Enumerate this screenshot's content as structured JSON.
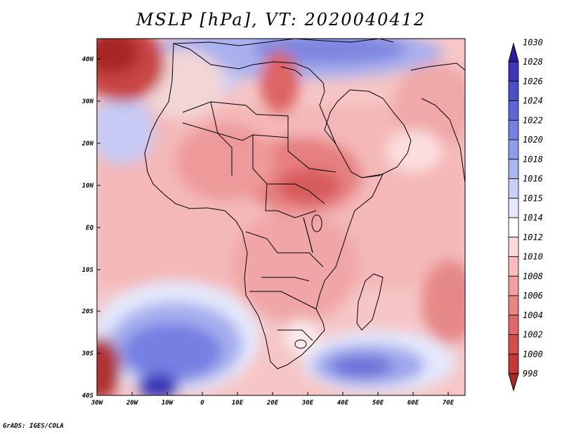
{
  "title": "MSLP [hPa], VT: 2020040412",
  "credit": "GrADS: IGES/COLA",
  "axes": {
    "lon_labels": [
      "30W",
      "20W",
      "10W",
      "0",
      "10E",
      "20E",
      "30E",
      "40E",
      "50E",
      "60E",
      "70E"
    ],
    "lat_labels": [
      "40N",
      "30N",
      "20N",
      "10N",
      "EQ",
      "10S",
      "20S",
      "30S",
      "40S"
    ]
  },
  "colorbar": {
    "levels": [
      "1030",
      "1028",
      "1026",
      "1024",
      "1022",
      "1020",
      "1018",
      "1016",
      "1015",
      "1014",
      "1012",
      "1010",
      "1008",
      "1006",
      "1004",
      "1002",
      "1000",
      "998"
    ],
    "colors": [
      "#2a1e9e",
      "#3a36b8",
      "#4a4ec8",
      "#5e66d6",
      "#7480e2",
      "#8e9cec",
      "#aab6f2",
      "#c8d0f8",
      "#e4e8fc",
      "#ffffff",
      "#fcd8d8",
      "#f8bcbc",
      "#f0a0a0",
      "#e88484",
      "#e06868",
      "#d44c4c",
      "#c43838",
      "#a82828"
    ]
  }
}
